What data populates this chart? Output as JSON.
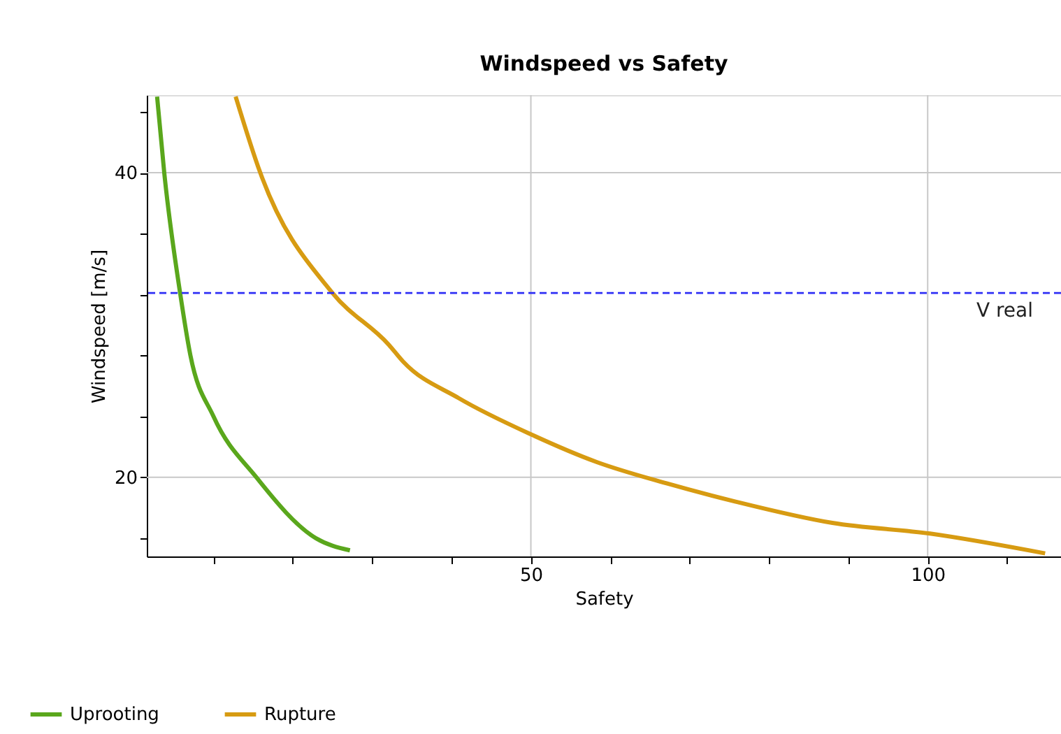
{
  "chart_data": {
    "type": "line",
    "title": "Windspeed vs Safety",
    "xlabel": "Safety",
    "ylabel": "Windspeed [m/s]",
    "xlim": [
      1.6,
      116.8
    ],
    "ylim": [
      14.8,
      45.1
    ],
    "xticks": [
      {
        "value": 10,
        "label": null
      },
      {
        "value": 20,
        "label": null
      },
      {
        "value": 30,
        "label": null
      },
      {
        "value": 40,
        "label": null
      },
      50,
      {
        "value": 60,
        "label": null
      },
      {
        "value": 70,
        "label": null
      },
      {
        "value": 80,
        "label": null
      },
      {
        "value": 90,
        "label": null
      },
      100,
      {
        "value": 110,
        "label": null
      }
    ],
    "yticks": [
      {
        "value": 16,
        "label": null
      },
      20,
      {
        "value": 24,
        "label": null
      },
      {
        "value": 28,
        "label": null
      },
      {
        "value": 32,
        "label": null
      },
      {
        "value": 36,
        "label": null
      },
      40,
      {
        "value": 44,
        "label": null
      }
    ],
    "grid": true,
    "legend": "bottom left",
    "line_style": "solid",
    "series": [
      {
        "name": "Uprooting",
        "color": "#5aa71c",
        "x": [
          2.9,
          3.8,
          5.8,
          7.1,
          10.0,
          15.4,
          22.9,
          27.2
        ],
        "values": [
          45.0,
          40.0,
          32.1,
          28.0,
          24.0,
          20.0,
          16.0,
          15.2
        ]
      },
      {
        "name": "Rupture",
        "color": "#d79b12",
        "x": [
          12.8,
          15.9,
          25.0,
          32.1,
          33.9,
          40.9,
          50.1,
          58.3,
          67.1,
          75.8,
          88.0,
          100.3,
          114.8
        ],
        "values": [
          45.0,
          40.0,
          32.1,
          28.7,
          27.6,
          25.2,
          22.8,
          21.0,
          19.6,
          18.4,
          17.0,
          16.3,
          15.0
        ]
      }
    ],
    "ref_lines": [
      {
        "axis": "y",
        "value": 32.1,
        "label": "V real",
        "color": "#2f2ff5",
        "line_style": "dashed"
      }
    ]
  }
}
